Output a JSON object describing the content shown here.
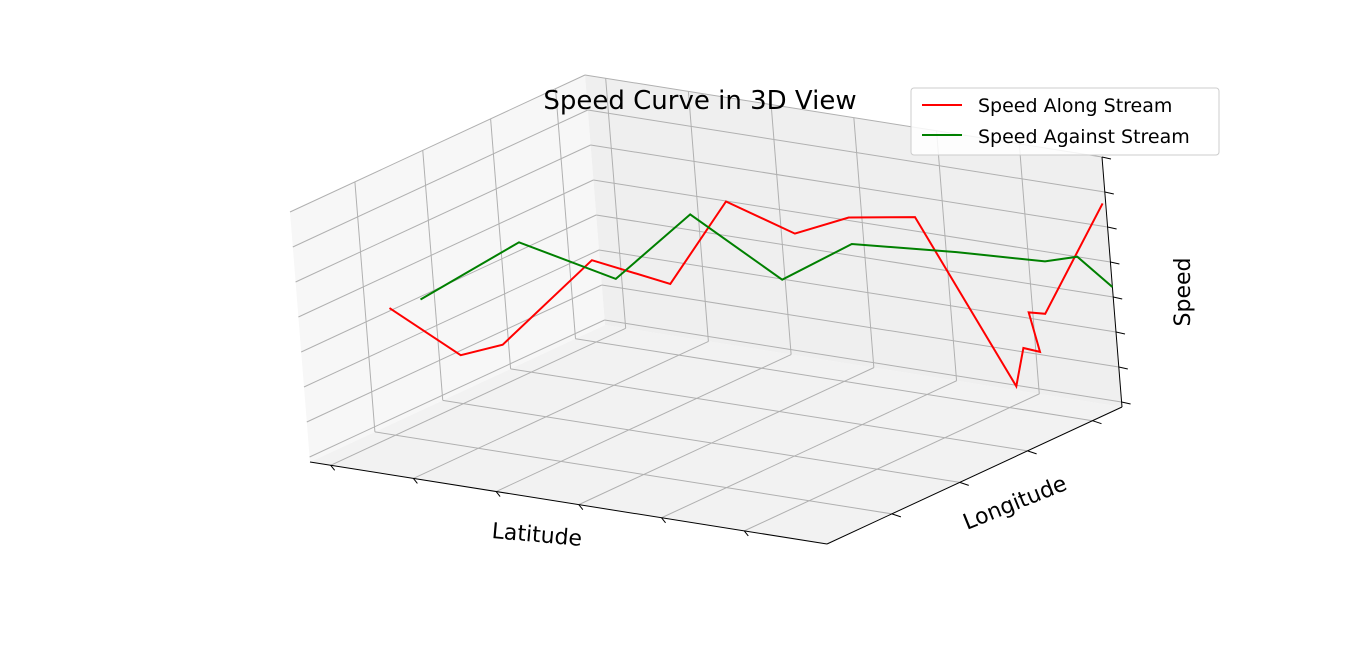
{
  "chart_data": {
    "type": "line",
    "projection": "3d",
    "title": "Speed Curve in 3D View",
    "xlabel": "Latitude",
    "ylabel": "Longitude",
    "zlabel": "Speed",
    "tick_labels_shown": false,
    "grid": true,
    "legend_position": "top-right",
    "series": [
      {
        "name": "Speed Along Stream",
        "color": "#ff0000",
        "points": [
          [
            0.12,
            0.1,
            0.6
          ],
          [
            0.24,
            0.12,
            0.44
          ],
          [
            0.3,
            0.16,
            0.48
          ],
          [
            0.44,
            0.24,
            0.82
          ],
          [
            0.53,
            0.34,
            0.7
          ],
          [
            0.58,
            0.46,
            0.98
          ],
          [
            0.65,
            0.56,
            0.82
          ],
          [
            0.71,
            0.64,
            0.86
          ],
          [
            0.78,
            0.74,
            0.83
          ],
          [
            0.88,
            0.86,
            0.12
          ],
          [
            0.9,
            0.86,
            0.28
          ],
          [
            0.92,
            0.88,
            0.26
          ],
          [
            0.91,
            0.87,
            0.42
          ],
          [
            0.93,
            0.89,
            0.41
          ],
          [
            1.0,
            0.99,
            0.82
          ]
        ]
      },
      {
        "name": "Speed Against Stream",
        "color": "#008000",
        "points": [
          [
            0.17,
            0.12,
            0.64
          ],
          [
            0.36,
            0.14,
            0.92
          ],
          [
            0.46,
            0.28,
            0.73
          ],
          [
            0.52,
            0.44,
            0.92
          ],
          [
            0.63,
            0.54,
            0.64
          ],
          [
            0.7,
            0.66,
            0.74
          ],
          [
            0.82,
            0.8,
            0.67
          ],
          [
            0.92,
            0.92,
            0.6
          ],
          [
            0.96,
            0.96,
            0.61
          ],
          [
            1.0,
            1.0,
            0.48
          ]
        ]
      }
    ]
  }
}
